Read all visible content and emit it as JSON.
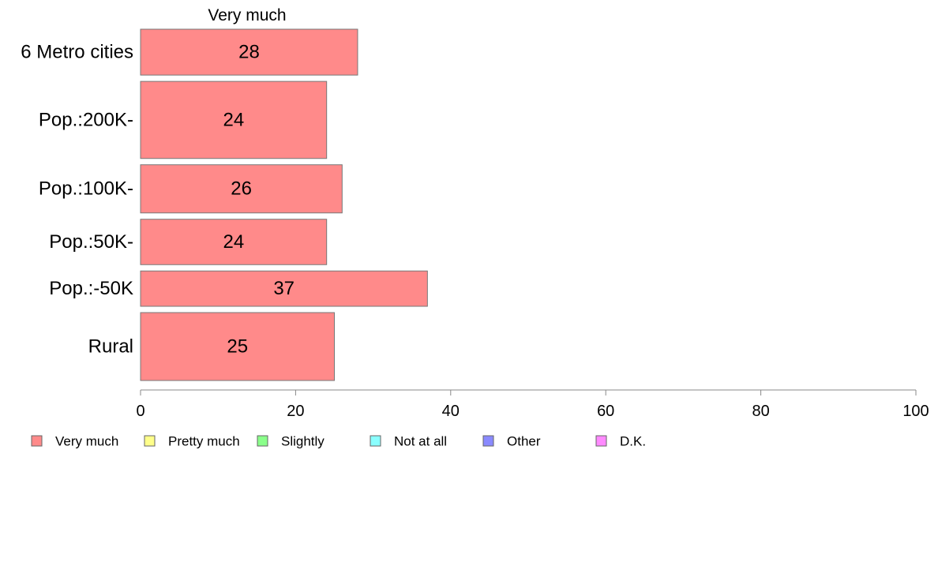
{
  "chart_data": {
    "type": "bar",
    "orientation": "horizontal",
    "title": "Very much",
    "categories": [
      "6 Metro cities",
      "Pop.:200K-",
      "Pop.:100K-",
      "Pop.:50K-",
      "Pop.:-50K",
      "Rural"
    ],
    "category_weights": [
      1.0,
      1.68,
      1.05,
      0.99,
      0.77,
      1.48
    ],
    "series": [
      {
        "name": "Very much",
        "values": [
          28,
          24,
          26,
          24,
          37,
          25
        ],
        "color": "#ff8a8a"
      }
    ],
    "value_labels": [
      "28",
      "24",
      "26",
      "24",
      "37",
      "25"
    ],
    "xlim": [
      0,
      100
    ],
    "xticks": [
      0,
      20,
      40,
      60,
      80,
      100
    ],
    "xtick_labels": [
      "0",
      "20",
      "40",
      "60",
      "80",
      "100"
    ],
    "grid": false,
    "legend": {
      "placement": "bottom",
      "items": [
        {
          "label": "Very much",
          "color": "#ff8a8a"
        },
        {
          "label": "Pretty much",
          "color": "#ffff8a"
        },
        {
          "label": "Slightly",
          "color": "#8aff8a"
        },
        {
          "label": "Not at all",
          "color": "#8affff"
        },
        {
          "label": "Other",
          "color": "#8a8aff"
        },
        {
          "label": "D.K.",
          "color": "#ff8aff"
        }
      ]
    }
  }
}
